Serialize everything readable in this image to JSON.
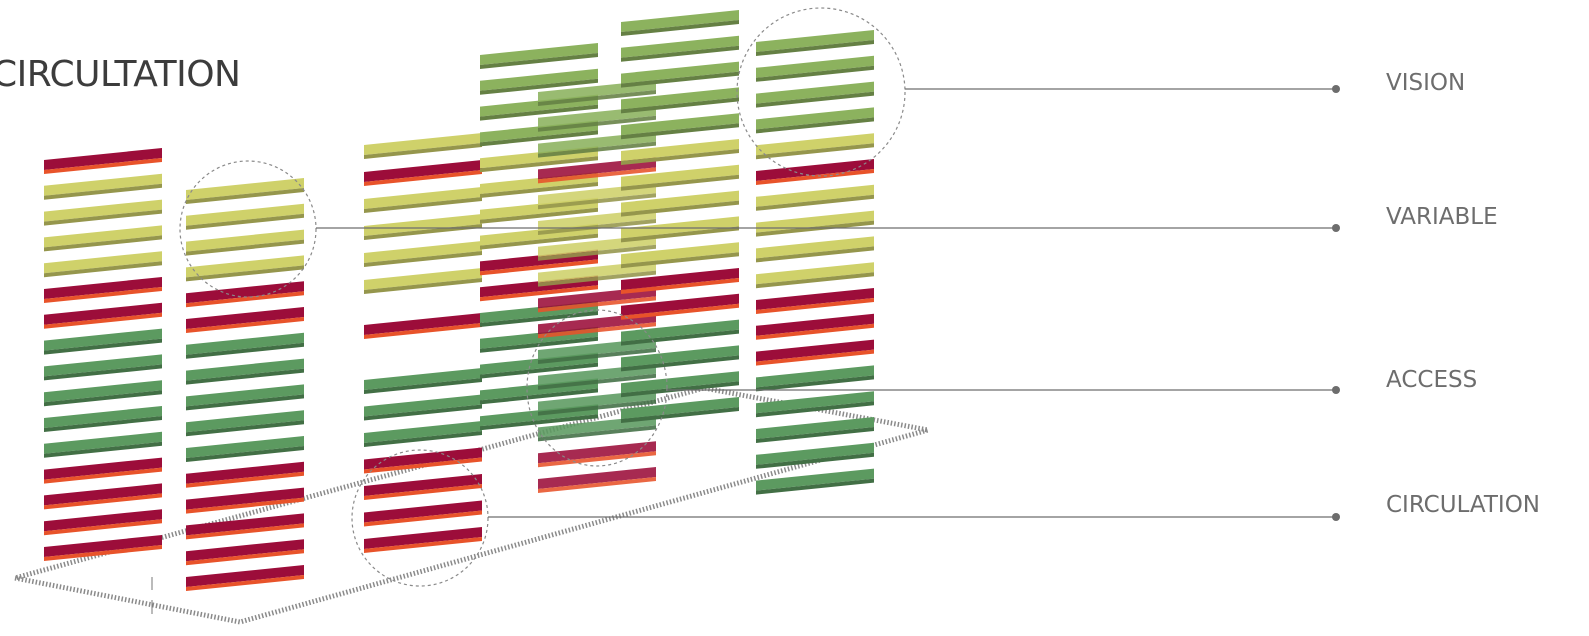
{
  "title": "CIRCULTATION",
  "legend": [
    {
      "label": "VISION"
    },
    {
      "label": "VARIABLE"
    },
    {
      "label": "ACCESS"
    },
    {
      "label": "CIRCULATION"
    }
  ],
  "colors": {
    "vision": "#8cb25e",
    "variable": "#cfd16a",
    "access": "#5c9a60",
    "circulation": "#9c0d3a",
    "circulation_edge": "#e8532a",
    "leader_line": "#6d6d6d",
    "dashed_outline": "#8a8a8a",
    "label_text": "#6d6d6d"
  }
}
